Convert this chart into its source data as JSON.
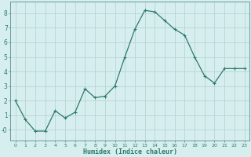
{
  "x": [
    0,
    1,
    2,
    3,
    4,
    5,
    6,
    7,
    8,
    9,
    10,
    11,
    12,
    13,
    14,
    15,
    16,
    17,
    18,
    19,
    20,
    21,
    22,
    23
  ],
  "y": [
    2.0,
    0.7,
    -0.1,
    -0.1,
    1.3,
    0.8,
    1.2,
    2.8,
    2.2,
    2.3,
    3.0,
    5.0,
    6.9,
    8.2,
    8.1,
    7.5,
    6.9,
    6.5,
    5.0,
    3.7,
    3.2,
    4.2,
    4.2,
    4.2
  ],
  "line_color": "#2d7a6a",
  "bg_color": "#d6eeee",
  "grid_color": "#b8d4d4",
  "xlabel": "Humidex (Indice chaleur)",
  "yticks": [
    0,
    1,
    2,
    3,
    4,
    5,
    6,
    7,
    8
  ],
  "ylim": [
    -0.75,
    8.8
  ],
  "xlim": [
    -0.5,
    23.5
  ]
}
